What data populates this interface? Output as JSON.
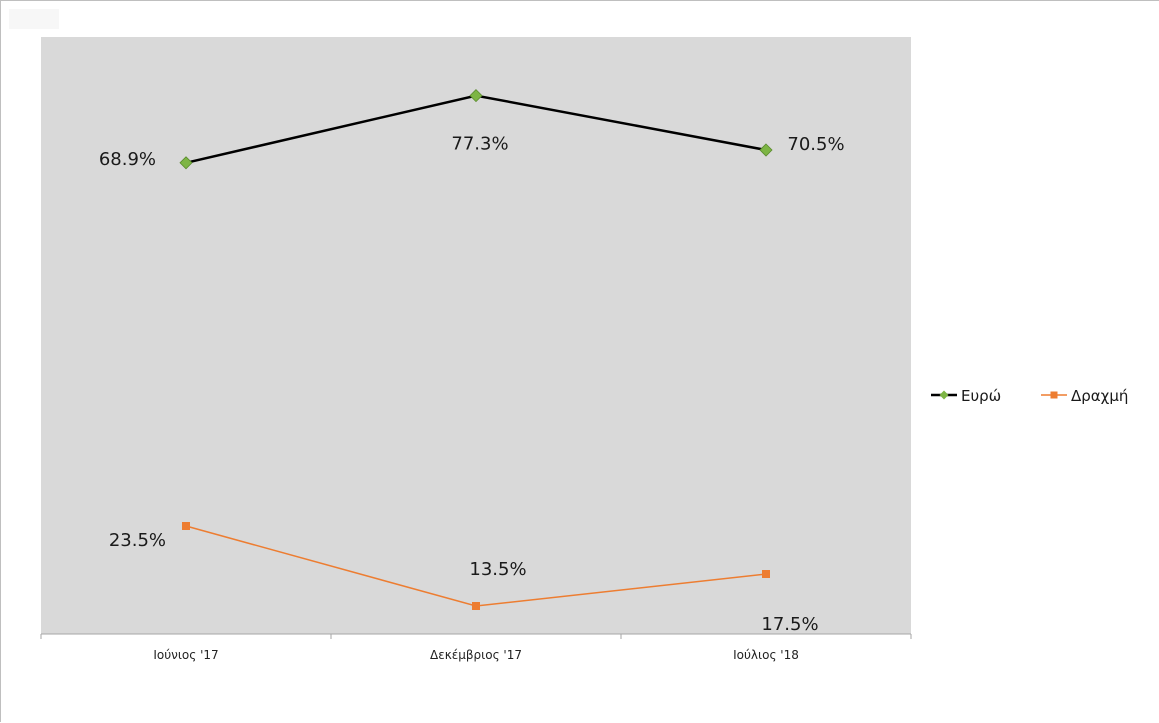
{
  "chart_data": {
    "type": "line",
    "categories": [
      "Ιούνιος '17",
      "Δεκέμβριος '17",
      "Ιούλιος '18"
    ],
    "ylim": [
      10,
      80
    ],
    "grid": false,
    "legend_position": "right",
    "series": [
      {
        "name": "Ευρώ",
        "values": [
          68.9,
          77.3,
          70.5
        ],
        "labels": [
          "68.9%",
          "77.3%",
          "70.5%"
        ],
        "color": "#000000",
        "marker": "diamond",
        "marker_color": "#7db544"
      },
      {
        "name": "Δραχμή",
        "values": [
          23.5,
          13.5,
          17.5
        ],
        "labels": [
          "23.5%",
          "13.5%",
          "17.5%"
        ],
        "color": "#ed7d31",
        "marker": "square",
        "marker_color": "#ed7d31"
      }
    ]
  }
}
